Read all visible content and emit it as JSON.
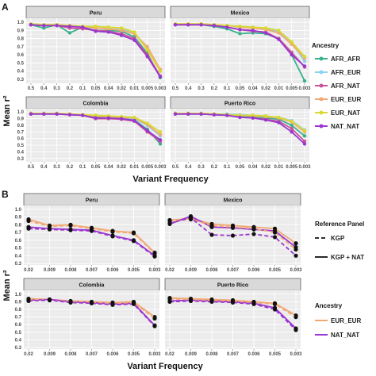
{
  "panel_labels": {
    "a": "A",
    "b": "B"
  },
  "chart_data": [
    {
      "type": "line",
      "facets": [
        "Peru",
        "Mexico",
        "Colombia",
        "Puerto Rico"
      ],
      "categories": [
        "0.5",
        "0.4",
        "0.3",
        "0.2",
        "0.1",
        "0.05",
        "0.04",
        "0.02",
        "0.01",
        "0.005",
        "0.003"
      ],
      "xlabel": "Variant Frequency",
      "ylabel": "Mean r²",
      "ylim": [
        0.25,
        1.05
      ],
      "yticks": [
        "0.3",
        "0.4",
        "0.5",
        "0.6",
        "0.7",
        "0.8",
        "0.9",
        "1.0"
      ],
      "grid": true,
      "legend": {
        "title": "Ancestry",
        "placement": "right",
        "entries": [
          {
            "name": "AFR_AFR",
            "color": "#3ab08f"
          },
          {
            "name": "AFR_EUR",
            "color": "#8ed1f0"
          },
          {
            "name": "AFR_NAT",
            "color": "#c9549a"
          },
          {
            "name": "EUR_EUR",
            "color": "#f1a974"
          },
          {
            "name": "EUR_NAT",
            "color": "#d8d931"
          },
          {
            "name": "NAT_NAT",
            "color": "#9b36d0"
          }
        ]
      },
      "series": {
        "Peru": [
          {
            "name": "AFR_AFR",
            "values": [
              0.97,
              0.93,
              0.97,
              0.87,
              0.94,
              0.9,
              0.9,
              0.89,
              0.82,
              0.62,
              0.32
            ]
          },
          {
            "name": "AFR_EUR",
            "values": [
              0.98,
              0.97,
              0.97,
              0.96,
              0.95,
              0.95,
              0.94,
              0.92,
              0.86,
              0.68,
              0.4
            ]
          },
          {
            "name": "AFR_NAT",
            "values": [
              0.97,
              0.96,
              0.96,
              0.93,
              0.92,
              0.9,
              0.89,
              0.86,
              0.8,
              0.6,
              0.34
            ]
          },
          {
            "name": "EUR_EUR",
            "values": [
              0.98,
              0.97,
              0.97,
              0.96,
              0.95,
              0.93,
              0.92,
              0.9,
              0.86,
              0.7,
              0.42
            ]
          },
          {
            "name": "EUR_NAT",
            "values": [
              0.98,
              0.97,
              0.97,
              0.96,
              0.95,
              0.95,
              0.94,
              0.93,
              0.88,
              0.66,
              0.4
            ]
          },
          {
            "name": "NAT_NAT",
            "values": [
              0.97,
              0.96,
              0.96,
              0.95,
              0.94,
              0.89,
              0.88,
              0.84,
              0.78,
              0.58,
              0.33
            ]
          }
        ],
        "Mexico": [
          {
            "name": "AFR_AFR",
            "values": [
              0.97,
              0.97,
              0.97,
              0.95,
              0.92,
              0.86,
              0.87,
              0.86,
              0.8,
              0.6,
              0.28
            ]
          },
          {
            "name": "AFR_EUR",
            "values": [
              0.98,
              0.98,
              0.98,
              0.97,
              0.96,
              0.95,
              0.94,
              0.92,
              0.88,
              0.75,
              0.52
            ]
          },
          {
            "name": "AFR_NAT",
            "values": [
              0.97,
              0.97,
              0.97,
              0.96,
              0.94,
              0.91,
              0.89,
              0.88,
              0.8,
              0.63,
              0.45
            ]
          },
          {
            "name": "EUR_EUR",
            "values": [
              0.98,
              0.98,
              0.98,
              0.97,
              0.96,
              0.94,
              0.93,
              0.91,
              0.87,
              0.73,
              0.56
            ]
          },
          {
            "name": "EUR_NAT",
            "values": [
              0.98,
              0.98,
              0.98,
              0.97,
              0.96,
              0.95,
              0.94,
              0.93,
              0.9,
              0.76,
              0.58
            ]
          },
          {
            "name": "NAT_NAT",
            "values": [
              0.97,
              0.97,
              0.97,
              0.96,
              0.94,
              0.91,
              0.9,
              0.87,
              0.79,
              0.6,
              0.46
            ]
          }
        ],
        "Colombia": [
          {
            "name": "AFR_AFR",
            "values": [
              0.97,
              0.97,
              0.97,
              0.96,
              0.95,
              0.92,
              0.91,
              0.9,
              0.88,
              0.74,
              0.52
            ]
          },
          {
            "name": "AFR_EUR",
            "values": [
              0.98,
              0.98,
              0.98,
              0.97,
              0.96,
              0.94,
              0.93,
              0.92,
              0.9,
              0.8,
              0.64
            ]
          },
          {
            "name": "AFR_NAT",
            "values": [
              0.97,
              0.97,
              0.97,
              0.96,
              0.95,
              0.9,
              0.9,
              0.89,
              0.86,
              0.7,
              0.56
            ]
          },
          {
            "name": "EUR_EUR",
            "values": [
              0.98,
              0.98,
              0.98,
              0.97,
              0.96,
              0.94,
              0.93,
              0.92,
              0.91,
              0.81,
              0.66
            ]
          },
          {
            "name": "EUR_NAT",
            "values": [
              0.98,
              0.98,
              0.98,
              0.97,
              0.96,
              0.95,
              0.94,
              0.93,
              0.92,
              0.83,
              0.7
            ]
          },
          {
            "name": "NAT_NAT",
            "values": [
              0.97,
              0.97,
              0.97,
              0.96,
              0.95,
              0.91,
              0.91,
              0.9,
              0.87,
              0.72,
              0.58
            ]
          }
        ],
        "Puerto Rico": [
          {
            "name": "AFR_AFR",
            "values": [
              0.97,
              0.97,
              0.97,
              0.96,
              0.95,
              0.94,
              0.93,
              0.91,
              0.89,
              0.8,
              0.64
            ]
          },
          {
            "name": "AFR_EUR",
            "values": [
              0.98,
              0.98,
              0.98,
              0.97,
              0.97,
              0.96,
              0.95,
              0.94,
              0.92,
              0.87,
              0.73
            ]
          },
          {
            "name": "AFR_NAT",
            "values": [
              0.97,
              0.97,
              0.97,
              0.96,
              0.95,
              0.92,
              0.91,
              0.89,
              0.86,
              0.75,
              0.56
            ]
          },
          {
            "name": "EUR_EUR",
            "values": [
              0.98,
              0.98,
              0.98,
              0.97,
              0.96,
              0.95,
              0.94,
              0.93,
              0.91,
              0.85,
              0.7
            ]
          },
          {
            "name": "EUR_NAT",
            "values": [
              0.98,
              0.98,
              0.98,
              0.97,
              0.96,
              0.95,
              0.95,
              0.94,
              0.92,
              0.86,
              0.72
            ]
          },
          {
            "name": "NAT_NAT",
            "values": [
              0.97,
              0.97,
              0.97,
              0.96,
              0.95,
              0.92,
              0.91,
              0.88,
              0.84,
              0.7,
              0.52
            ]
          }
        ]
      }
    },
    {
      "type": "line",
      "facets": [
        "Peru",
        "Mexico",
        "Colombia",
        "Puerto Rico"
      ],
      "categories": [
        "0.02",
        "0.009",
        "0.008",
        "0.007",
        "0.006",
        "0.005",
        "0.003"
      ],
      "xlabel": "Variant Frequency",
      "ylabel": "Mean r²",
      "ylim": [
        0.28,
        1.05
      ],
      "yticks": [
        "0.3",
        "0.4",
        "0.5",
        "0.6",
        "0.7",
        "0.8",
        "0.9",
        "1.0"
      ],
      "grid": true,
      "legend": [
        {
          "title": "Reference Panel",
          "placement": "right",
          "entries": [
            {
              "name": "KGP",
              "linetype": "dashed"
            },
            {
              "name": "KGP + NAT",
              "linetype": "solid"
            }
          ]
        },
        {
          "title": "Ancestry",
          "placement": "right",
          "entries": [
            {
              "name": "EUR_EUR",
              "color": "#f1a974"
            },
            {
              "name": "NAT_NAT",
              "color": "#9b36d0"
            }
          ]
        }
      ],
      "series": {
        "Peru": [
          {
            "name": "EUR_EUR",
            "panel": "KGP + NAT",
            "values": [
              0.87,
              0.79,
              0.8,
              0.76,
              0.72,
              0.7,
              0.44
            ]
          },
          {
            "name": "NAT_NAT",
            "panel": "KGP + NAT",
            "values": [
              0.77,
              0.75,
              0.74,
              0.73,
              0.66,
              0.6,
              0.4
            ]
          },
          {
            "name": "EUR_EUR",
            "panel": "KGP",
            "values": [
              0.85,
              0.78,
              0.79,
              0.75,
              0.71,
              0.69,
              0.43
            ]
          },
          {
            "name": "NAT_NAT",
            "panel": "KGP",
            "values": [
              0.75,
              0.74,
              0.73,
              0.72,
              0.65,
              0.59,
              0.39
            ]
          }
        ],
        "Mexico": [
          {
            "name": "EUR_EUR",
            "panel": "KGP + NAT",
            "values": [
              0.86,
              0.88,
              0.81,
              0.79,
              0.77,
              0.75,
              0.56
            ]
          },
          {
            "name": "NAT_NAT",
            "panel": "KGP + NAT",
            "values": [
              0.81,
              0.91,
              0.77,
              0.76,
              0.74,
              0.72,
              0.51
            ]
          },
          {
            "name": "EUR_EUR",
            "panel": "KGP",
            "values": [
              0.85,
              0.87,
              0.79,
              0.77,
              0.75,
              0.7,
              0.48
            ]
          },
          {
            "name": "NAT_NAT",
            "panel": "KGP",
            "values": [
              0.82,
              0.89,
              0.67,
              0.66,
              0.68,
              0.64,
              0.4
            ]
          }
        ],
        "Colombia": [
          {
            "name": "EUR_EUR",
            "panel": "KGP + NAT",
            "values": [
              0.94,
              0.93,
              0.91,
              0.9,
              0.89,
              0.9,
              0.7
            ]
          },
          {
            "name": "NAT_NAT",
            "panel": "KGP + NAT",
            "values": [
              0.92,
              0.93,
              0.9,
              0.89,
              0.87,
              0.88,
              0.59
            ]
          },
          {
            "name": "EUR_EUR",
            "panel": "KGP",
            "values": [
              0.93,
              0.92,
              0.9,
              0.89,
              0.88,
              0.89,
              0.68
            ]
          },
          {
            "name": "NAT_NAT",
            "panel": "KGP",
            "values": [
              0.91,
              0.92,
              0.89,
              0.88,
              0.86,
              0.87,
              0.58
            ]
          }
        ],
        "Puerto Rico": [
          {
            "name": "EUR_EUR",
            "panel": "KGP + NAT",
            "values": [
              0.95,
              0.94,
              0.93,
              0.92,
              0.9,
              0.88,
              0.72
            ]
          },
          {
            "name": "NAT_NAT",
            "panel": "KGP + NAT",
            "values": [
              0.91,
              0.92,
              0.91,
              0.9,
              0.88,
              0.82,
              0.55
            ]
          },
          {
            "name": "EUR_EUR",
            "panel": "KGP",
            "values": [
              0.94,
              0.93,
              0.92,
              0.91,
              0.89,
              0.87,
              0.7
            ]
          },
          {
            "name": "NAT_NAT",
            "panel": "KGP",
            "values": [
              0.9,
              0.91,
              0.9,
              0.89,
              0.87,
              0.8,
              0.53
            ]
          }
        ]
      }
    }
  ]
}
